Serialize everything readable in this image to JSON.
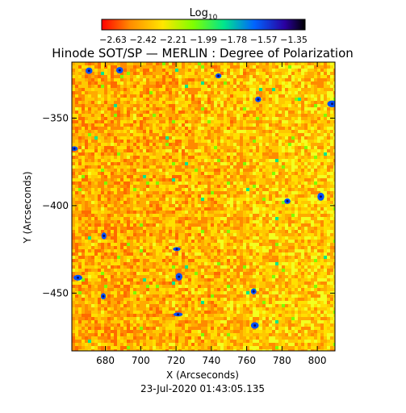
{
  "colorbar": {
    "title": "Log",
    "title_subscript": "10",
    "tick_labels": [
      "−2.63",
      "−2.42",
      "−2.21",
      "−1.99",
      "−1.78",
      "−1.57",
      "−1.35"
    ],
    "colors": [
      "#ff0000",
      "#ff8c00",
      "#ffe600",
      "#7fff00",
      "#00e68c",
      "#0064ff",
      "#2a00a0",
      "#000000"
    ]
  },
  "title": "Hinode SOT/SP — MERLIN : Degree of Polarization",
  "x_axis": {
    "label": "X (Arcseconds)",
    "range": [
      661,
      810
    ],
    "ticks": [
      680,
      700,
      720,
      740,
      760,
      780,
      800
    ],
    "tick_labels": [
      "680",
      "700",
      "720",
      "740",
      "760",
      "780",
      "800"
    ]
  },
  "y_axis": {
    "label": "Y (Arcseconds)",
    "range": [
      -483,
      -318
    ],
    "ticks": [
      -350,
      -400,
      -450
    ],
    "tick_labels": [
      "−350",
      "−400",
      "−450"
    ]
  },
  "timestamp": "23-Jul-2020 01:43:05.135",
  "map": {
    "base_colors": [
      "#ff6a00",
      "#ff8a00",
      "#ffaa00",
      "#ffc800",
      "#ffe000",
      "#f3ff20"
    ],
    "patch_colors": [
      "#7fff00",
      "#00e68c",
      "#0050ff",
      "#101060"
    ]
  }
}
